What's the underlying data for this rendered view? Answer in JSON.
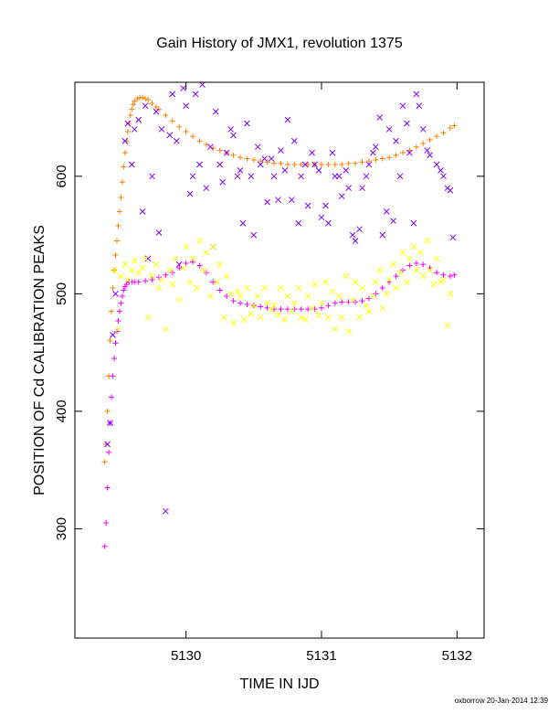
{
  "chart_data": {
    "type": "scatter",
    "title": "Gain History of JMX1, revolution 1375",
    "xlabel": "TIME IN IJD",
    "ylabel": "POSITION OF Cd CALIBRATION PEAKS",
    "footer": "oxborrow 20-Jan-2014 12:39",
    "xlim": [
      5129.18,
      5132.2
    ],
    "ylim": [
      207,
      680
    ],
    "xticks": [
      5130,
      5131,
      5132
    ],
    "yticks": [
      300,
      400,
      500,
      600
    ],
    "xtick_labels": [
      "5130",
      "5131",
      "5132"
    ],
    "ytick_labels": [
      "300",
      "400",
      "500",
      "600"
    ],
    "grid": false,
    "legend": "none",
    "series": [
      {
        "marker": "plus",
        "color": "#ff8000",
        "x": [
          5129.4,
          5129.41,
          5129.42,
          5129.43,
          5129.44,
          5129.45,
          5129.46,
          5129.47,
          5129.48,
          5129.49,
          5129.5,
          5129.51,
          5129.52,
          5129.53,
          5129.54,
          5129.55,
          5129.56,
          5129.57,
          5129.58,
          5129.59,
          5129.6,
          5129.61,
          5129.62,
          5129.64,
          5129.66,
          5129.68,
          5129.7,
          5129.72,
          5129.75,
          5129.78,
          5129.8,
          5129.85,
          5129.9,
          5129.95,
          5130.0,
          5130.05,
          5130.1,
          5130.15,
          5130.2,
          5130.25,
          5130.3,
          5130.35,
          5130.4,
          5130.45,
          5130.5,
          5130.55,
          5130.6,
          5130.65,
          5130.7,
          5130.75,
          5130.8,
          5130.85,
          5130.9,
          5130.95,
          5131.0,
          5131.05,
          5131.1,
          5131.15,
          5131.2,
          5131.25,
          5131.3,
          5131.35,
          5131.4,
          5131.45,
          5131.5,
          5131.55,
          5131.6,
          5131.65,
          5131.7,
          5131.75,
          5131.8,
          5131.85,
          5131.9,
          5131.95,
          5131.98
        ],
        "y": [
          357,
          372,
          400,
          430,
          460,
          485,
          505,
          520,
          533,
          545,
          558,
          570,
          582,
          595,
          608,
          620,
          630,
          638,
          645,
          652,
          657,
          661,
          664,
          666,
          667,
          667,
          666,
          665,
          662,
          659,
          657,
          652,
          647,
          642,
          638,
          634,
          630,
          627,
          624,
          622,
          620,
          618,
          616,
          615,
          614,
          613,
          612,
          611,
          611,
          610,
          610,
          610,
          610,
          610,
          610,
          610,
          610,
          610,
          611,
          611,
          612,
          613,
          614,
          615,
          616,
          618,
          620,
          622,
          625,
          628,
          631,
          634,
          637,
          641,
          643
        ]
      },
      {
        "marker": "plus",
        "color": "#ff00ff",
        "x": [
          5129.4,
          5129.41,
          5129.42,
          5129.43,
          5129.44,
          5129.45,
          5129.46,
          5129.47,
          5129.48,
          5129.49,
          5129.5,
          5129.51,
          5129.52,
          5129.53,
          5129.54,
          5129.55,
          5129.56,
          5129.58,
          5129.6,
          5129.62,
          5129.65,
          5129.7,
          5129.75,
          5129.8,
          5129.85,
          5129.9,
          5129.95,
          5130.0,
          5130.05,
          5130.1,
          5130.15,
          5130.2,
          5130.25,
          5130.3,
          5130.35,
          5130.4,
          5130.45,
          5130.5,
          5130.55,
          5130.6,
          5130.65,
          5130.7,
          5130.75,
          5130.8,
          5130.85,
          5130.9,
          5130.95,
          5131.0,
          5131.05,
          5131.1,
          5131.15,
          5131.2,
          5131.25,
          5131.3,
          5131.35,
          5131.4,
          5131.45,
          5131.5,
          5131.55,
          5131.6,
          5131.65,
          5131.7,
          5131.75,
          5131.8,
          5131.85,
          5131.9,
          5131.95,
          5131.98
        ],
        "y": [
          285,
          305,
          335,
          365,
          390,
          412,
          430,
          445,
          458,
          468,
          477,
          485,
          492,
          498,
          503,
          506,
          508,
          510,
          510,
          510,
          510,
          511,
          512,
          514,
          516,
          518,
          522,
          526,
          527,
          524,
          518,
          510,
          503,
          498,
          494,
          492,
          491,
          490,
          489,
          488,
          487,
          487,
          487,
          487,
          487,
          487,
          487,
          488,
          490,
          492,
          493,
          493,
          493,
          494,
          496,
          500,
          505,
          510,
          515,
          520,
          524,
          526,
          525,
          522,
          518,
          516,
          515,
          516
        ]
      },
      {
        "marker": "cross",
        "color": "#7f00ff",
        "x": [
          5129.42,
          5129.44,
          5129.46,
          5129.48,
          5129.55,
          5129.57,
          5129.6,
          5129.62,
          5129.65,
          5129.68,
          5129.7,
          5129.72,
          5129.75,
          5129.78,
          5129.8,
          5129.82,
          5129.85,
          5129.88,
          5129.9,
          5129.93,
          5129.95,
          5129.98,
          5130.0,
          5130.03,
          5130.05,
          5130.07,
          5130.1,
          5130.12,
          5130.15,
          5130.18,
          5130.2,
          5130.22,
          5130.25,
          5130.27,
          5130.3,
          5130.33,
          5130.35,
          5130.38,
          5130.4,
          5130.42,
          5130.45,
          5130.48,
          5130.5,
          5130.53,
          5130.55,
          5130.58,
          5130.6,
          5130.63,
          5130.65,
          5130.68,
          5130.7,
          5130.73,
          5130.75,
          5130.78,
          5130.8,
          5130.83,
          5130.85,
          5130.88,
          5130.9,
          5130.93,
          5130.95,
          5130.98,
          5131.0,
          5131.03,
          5131.05,
          5131.08,
          5131.1,
          5131.13,
          5131.15,
          5131.18,
          5131.2,
          5131.23,
          5131.25,
          5131.28,
          5131.3,
          5131.33,
          5131.35,
          5131.38,
          5131.4,
          5131.43,
          5131.45,
          5131.48,
          5131.5,
          5131.53,
          5131.55,
          5131.58,
          5131.6,
          5131.63,
          5131.65,
          5131.68,
          5131.7,
          5131.72,
          5131.75,
          5131.78,
          5131.8,
          5131.85,
          5131.88,
          5131.9,
          5131.93,
          5131.95,
          5131.97
        ],
        "y": [
          372,
          390,
          465,
          500,
          630,
          645,
          610,
          640,
          648,
          570,
          660,
          530,
          600,
          655,
          552,
          640,
          315,
          635,
          670,
          630,
          525,
          675,
          660,
          585,
          600,
          670,
          610,
          678,
          590,
          625,
          540,
          655,
          610,
          595,
          620,
          640,
          635,
          600,
          605,
          560,
          645,
          600,
          550,
          625,
          610,
          615,
          578,
          615,
          600,
          580,
          622,
          605,
          648,
          580,
          630,
          560,
          600,
          610,
          575,
          620,
          610,
          605,
          565,
          575,
          560,
          620,
          600,
          600,
          583,
          605,
          590,
          550,
          545,
          555,
          590,
          600,
          610,
          620,
          625,
          650,
          550,
          570,
          640,
          562,
          630,
          600,
          660,
          645,
          620,
          560,
          670,
          660,
          640,
          622,
          618,
          610,
          605,
          600,
          590,
          588,
          548
        ]
      },
      {
        "marker": "cross",
        "color": "#ffff00",
        "x": [
          5129.47,
          5129.5,
          5129.52,
          5129.55,
          5129.57,
          5129.6,
          5129.62,
          5129.65,
          5129.68,
          5129.7,
          5129.72,
          5129.75,
          5129.78,
          5129.8,
          5129.82,
          5129.85,
          5129.88,
          5129.9,
          5129.92,
          5129.95,
          5129.98,
          5130.0,
          5130.03,
          5130.05,
          5130.08,
          5130.1,
          5130.13,
          5130.15,
          5130.18,
          5130.2,
          5130.23,
          5130.25,
          5130.28,
          5130.3,
          5130.33,
          5130.35,
          5130.38,
          5130.4,
          5130.43,
          5130.45,
          5130.48,
          5130.5,
          5130.53,
          5130.55,
          5130.58,
          5130.6,
          5130.63,
          5130.65,
          5130.68,
          5130.7,
          5130.73,
          5130.75,
          5130.78,
          5130.8,
          5130.83,
          5130.85,
          5130.88,
          5130.9,
          5130.93,
          5130.95,
          5130.98,
          5131.0,
          5131.03,
          5131.05,
          5131.08,
          5131.1,
          5131.13,
          5131.15,
          5131.18,
          5131.2,
          5131.23,
          5131.25,
          5131.28,
          5131.3,
          5131.33,
          5131.35,
          5131.38,
          5131.4,
          5131.43,
          5131.45,
          5131.48,
          5131.5,
          5131.53,
          5131.55,
          5131.58,
          5131.6,
          5131.63,
          5131.65,
          5131.68,
          5131.7,
          5131.73,
          5131.75,
          5131.78,
          5131.8,
          5131.83,
          5131.85,
          5131.88,
          5131.9,
          5131.93,
          5131.95
        ],
        "y": [
          520,
          470,
          515,
          525,
          512,
          520,
          528,
          518,
          522,
          530,
          480,
          515,
          525,
          505,
          512,
          470,
          520,
          508,
          530,
          495,
          522,
          540,
          510,
          530,
          505,
          545,
          520,
          535,
          498,
          540,
          510,
          525,
          480,
          515,
          500,
          475,
          502,
          498,
          478,
          505,
          483,
          490,
          498,
          480,
          505,
          492,
          486,
          490,
          482,
          505,
          478,
          498,
          485,
          492,
          505,
          480,
          478,
          498,
          488,
          508,
          482,
          492,
          510,
          480,
          502,
          470,
          498,
          480,
          515,
          468,
          495,
          510,
          480,
          505,
          490,
          485,
          498,
          510,
          520,
          488,
          500,
          512,
          525,
          505,
          518,
          535,
          510,
          530,
          540,
          520,
          535,
          515,
          545,
          520,
          508,
          530,
          510,
          512,
          473,
          500
        ]
      }
    ]
  }
}
